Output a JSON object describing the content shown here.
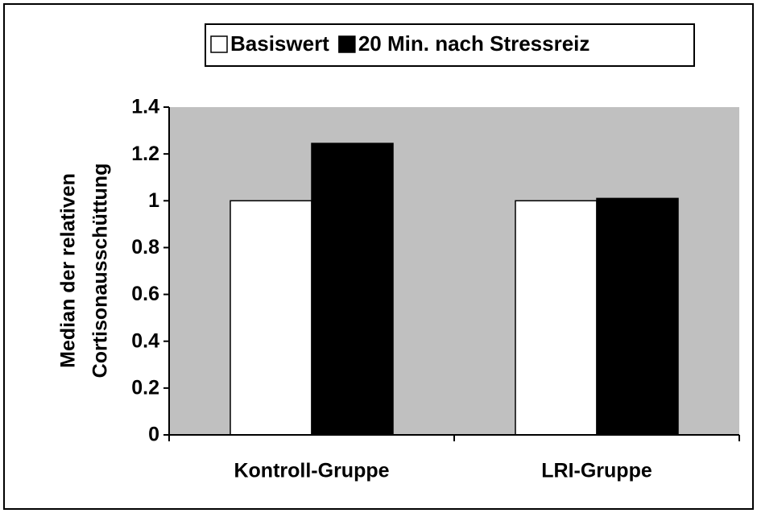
{
  "chart_data": {
    "type": "bar",
    "ylabel": [
      "Median der relativen",
      "Cortisonausschüttung"
    ],
    "categories": [
      "Kontroll-Gruppe",
      "LRI-Gruppe"
    ],
    "series": [
      {
        "name": "Basiswert",
        "color": "#ffffff",
        "values": [
          1,
          1
        ]
      },
      {
        "name": "20 Min. nach Stressreiz",
        "color": "#000000",
        "values": [
          1.245,
          1.01
        ]
      }
    ],
    "ylim": [
      0,
      1.4
    ],
    "yticks": [
      0,
      0.2,
      0.4,
      0.6,
      0.8,
      1,
      1.2,
      1.4
    ],
    "plot_background": "#c0c0c0",
    "legend": "top"
  }
}
